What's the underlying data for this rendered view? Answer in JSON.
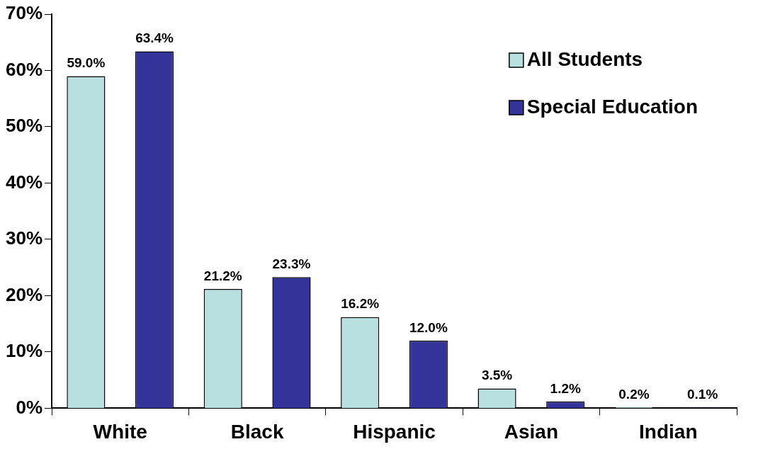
{
  "chart_data": {
    "type": "bar",
    "categories": [
      "White",
      "Black",
      "Hispanic",
      "Asian",
      "Indian"
    ],
    "series": [
      {
        "name": "All Students",
        "color": "#b9e0e0",
        "values": [
          59.0,
          21.2,
          16.2,
          3.5,
          0.2
        ],
        "value_labels": [
          "59.0%",
          "21.2%",
          "16.2%",
          "3.5%",
          "0.2%"
        ]
      },
      {
        "name": "Special Education",
        "color": "#333399",
        "values": [
          63.4,
          23.3,
          12.0,
          1.2,
          0.1
        ],
        "value_labels": [
          "63.4%",
          "23.3%",
          "12.0%",
          "1.2%",
          "0.1%"
        ]
      }
    ],
    "ylim": [
      0,
      70
    ],
    "yticks": [
      {
        "value": 0,
        "label": "0%"
      },
      {
        "value": 10,
        "label": "10%"
      },
      {
        "value": 20,
        "label": "20%"
      },
      {
        "value": 30,
        "label": "30%"
      },
      {
        "value": 40,
        "label": "40%"
      },
      {
        "value": 50,
        "label": "50%"
      },
      {
        "value": 60,
        "label": "60%"
      },
      {
        "value": 70,
        "label": "70%"
      }
    ],
    "grid": false,
    "legend": "top right"
  }
}
